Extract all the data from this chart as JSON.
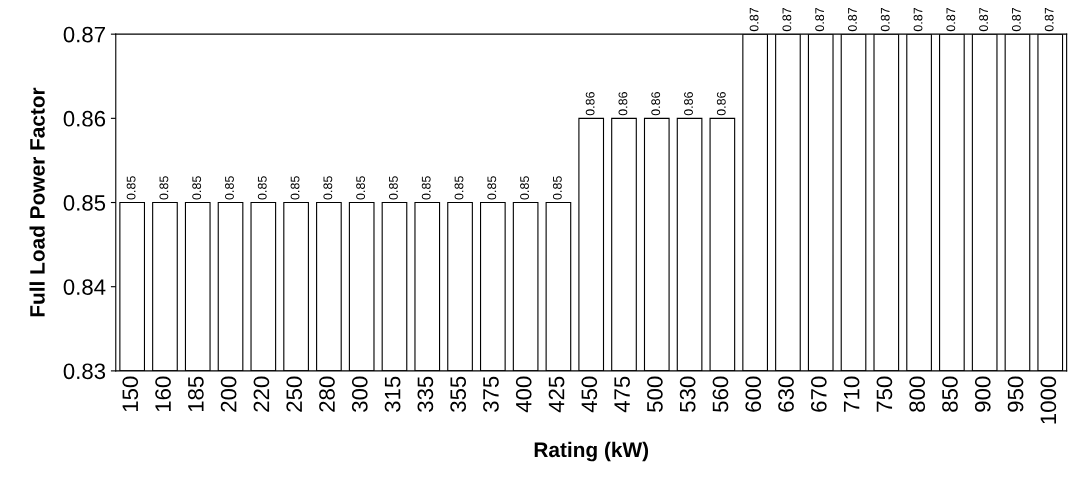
{
  "chart_data": {
    "type": "bar",
    "xlabel": "Rating (kW)",
    "ylabel": "Full Load Power Factor",
    "categories": [
      "150",
      "160",
      "185",
      "200",
      "220",
      "250",
      "280",
      "300",
      "315",
      "335",
      "355",
      "375",
      "400",
      "425",
      "450",
      "475",
      "500",
      "530",
      "560",
      "600",
      "630",
      "670",
      "710",
      "750",
      "800",
      "850",
      "900",
      "950",
      "1000"
    ],
    "values": [
      0.85,
      0.85,
      0.85,
      0.85,
      0.85,
      0.85,
      0.85,
      0.85,
      0.85,
      0.85,
      0.85,
      0.85,
      0.85,
      0.85,
      0.86,
      0.86,
      0.86,
      0.86,
      0.86,
      0.87,
      0.87,
      0.87,
      0.87,
      0.87,
      0.87,
      0.87,
      0.87,
      0.87,
      0.87
    ],
    "color": "#ffffff",
    "ylim": [
      0.83,
      0.87
    ],
    "yticks": [
      0.83,
      0.84,
      0.85,
      0.86,
      0.87
    ],
    "data_labels": true,
    "grid": false,
    "legend": false
  }
}
